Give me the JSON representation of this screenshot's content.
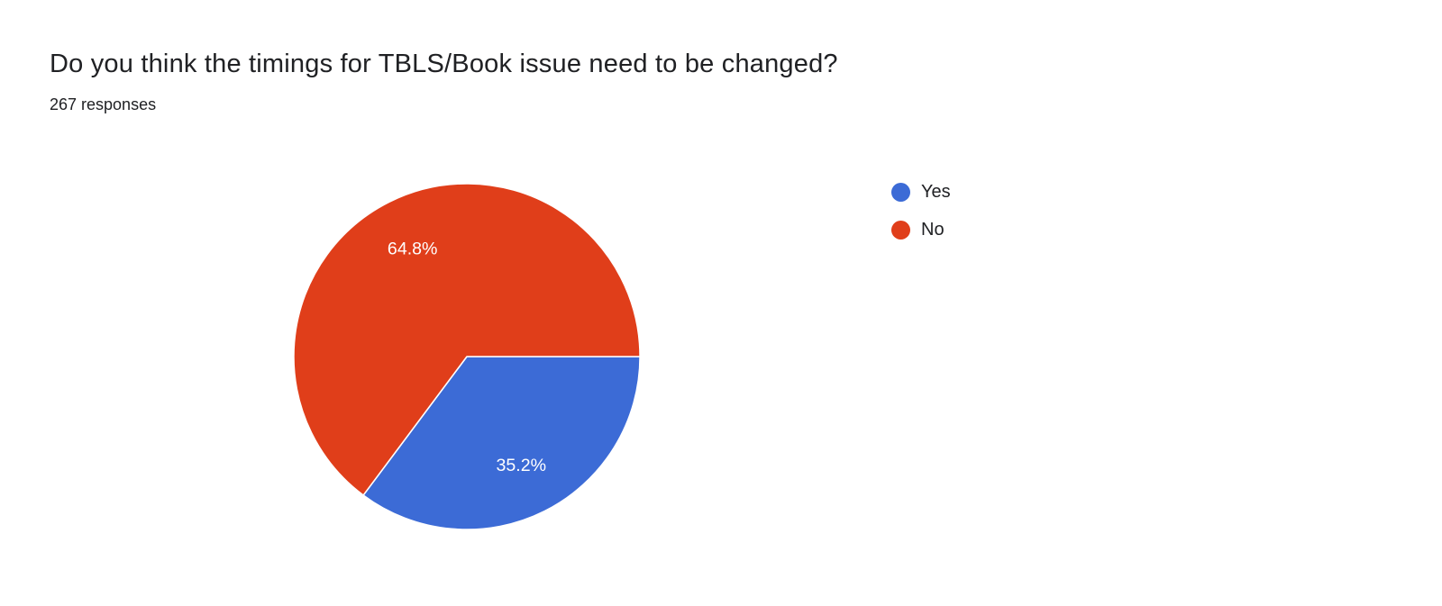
{
  "page": {
    "title": "Do you think the timings for TBLS/Book issue need to be changed?",
    "responses_label": "267 responses"
  },
  "chart_data": {
    "type": "pie",
    "title": "Do you think the timings for TBLS/Book issue need to be changed?",
    "subtitle": "267 responses",
    "response_count": 267,
    "labels": [
      "Yes",
      "No"
    ],
    "values": [
      35.2,
      64.8
    ],
    "unit": "%",
    "slice_labels": [
      "35.2%",
      "64.8%"
    ],
    "colors": [
      "#3c6bd6",
      "#e03e1a"
    ],
    "slice_label_color": "#ffffff",
    "start_angle_deg_clockwise_from_top": 90,
    "legend_position": "right",
    "background": "#ffffff"
  }
}
